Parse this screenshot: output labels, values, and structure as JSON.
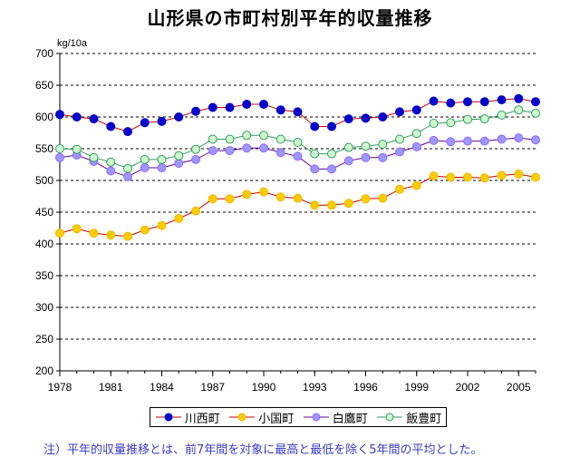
{
  "chart_data": {
    "type": "line",
    "title": "山形県の市町村別平年的収量推移",
    "ylabel": "kg/10a",
    "xlabel": "",
    "x": [
      1978,
      1979,
      1980,
      1981,
      1982,
      1983,
      1984,
      1985,
      1986,
      1987,
      1988,
      1989,
      1990,
      1991,
      1992,
      1993,
      1994,
      1995,
      1996,
      1997,
      1998,
      1999,
      2000,
      2001,
      2002,
      2003,
      2004,
      2005,
      2006
    ],
    "x_ticks": [
      "1978",
      "1981",
      "1984",
      "1987",
      "1990",
      "1993",
      "1996",
      "1999",
      "2002",
      "2005"
    ],
    "x_tick_values": [
      1978,
      1981,
      1984,
      1987,
      1990,
      1993,
      1996,
      1999,
      2002,
      2005
    ],
    "xlim": [
      1978,
      2006
    ],
    "ylim": [
      200,
      700
    ],
    "y_ticks": [
      200,
      250,
      300,
      350,
      400,
      450,
      500,
      550,
      600,
      650,
      700
    ],
    "y_tick_labels": [
      "200",
      "250",
      "300",
      "350",
      "400",
      "450",
      "500",
      "550",
      "600",
      "650",
      "700"
    ],
    "grid": "horizontal dashed",
    "legend_position": "bottom",
    "series": [
      {
        "name": "川西町",
        "color": "#0000cc",
        "marker_fill": "#0000cc",
        "line_color": "#cc0000",
        "values": [
          604,
          600,
          597,
          585,
          577,
          591,
          593,
          600,
          609,
          615,
          615,
          620,
          620,
          611,
          608,
          585,
          585,
          597,
          598,
          600,
          608,
          611,
          625,
          622,
          624,
          624,
          627,
          629,
          624
        ]
      },
      {
        "name": "小国町",
        "color": "#f0b800",
        "marker_fill": "#ffcc00",
        "line_color": "#cc0000",
        "values": [
          417,
          424,
          417,
          414,
          412,
          422,
          429,
          440,
          452,
          471,
          471,
          478,
          482,
          474,
          472,
          461,
          461,
          464,
          471,
          472,
          486,
          492,
          507,
          505,
          505,
          504,
          508,
          510,
          505
        ]
      },
      {
        "name": "白鷹町",
        "color": "#9966ff",
        "marker_fill": "#9999ff",
        "line_color": "#660099",
        "values": [
          536,
          540,
          530,
          515,
          506,
          520,
          520,
          527,
          533,
          547,
          547,
          551,
          551,
          544,
          538,
          518,
          518,
          531,
          536,
          536,
          545,
          553,
          563,
          561,
          562,
          562,
          565,
          567,
          564
        ]
      },
      {
        "name": "飯豊町",
        "color": "#339966",
        "marker_fill": "#ccffcc",
        "line_color": "#339966",
        "values": [
          550,
          549,
          536,
          529,
          519,
          533,
          533,
          539,
          549,
          565,
          565,
          571,
          571,
          565,
          560,
          542,
          542,
          552,
          554,
          557,
          565,
          574,
          590,
          591,
          596,
          597,
          603,
          611,
          606
        ]
      }
    ]
  },
  "footnote": "注）平年的収量推移とは、前7年間を対象に最高と最低を除く5年間の平均とした。"
}
